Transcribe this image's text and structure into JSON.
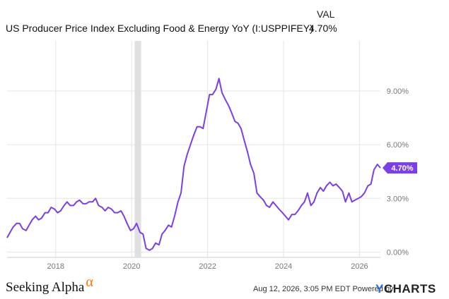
{
  "legend": {
    "header": "VAL",
    "series_label": "US Producer Price Index Excluding Food & Energy YoY (I:USPPIFEY)",
    "series_value": "4.70%"
  },
  "footer": {
    "timestamp": "Aug 12, 2026, 3:05 PM EDT Powered by",
    "brand_y": "Y",
    "brand_rest": "CHARTS",
    "logo_text": "Seeking Alpha",
    "logo_mark": "α"
  },
  "colors": {
    "line": "#7b3fe4",
    "grid": "#e4e4e4",
    "recession": "#e0e0e0",
    "tick_text": "#777777",
    "badge": "#7b3fe4"
  },
  "chart_data": {
    "type": "line",
    "title": "US Producer Price Index Excluding Food & Energy YoY (I:USPPIFEY)",
    "xlabel": "",
    "ylabel": "",
    "y_ticks": [
      0,
      3,
      6,
      9
    ],
    "y_tick_labels": [
      "0.00%",
      "3.00%",
      "6.00%",
      "9.00%"
    ],
    "x_ticks": [
      2018,
      2020,
      2022,
      2024,
      2026
    ],
    "x_tick_labels": [
      "2018",
      "2020",
      "2022",
      "2024",
      "2026"
    ],
    "xlim": [
      2016.72,
      2026.55
    ],
    "ylim": [
      -0.3,
      11.8
    ],
    "grid": true,
    "end_label": "4.70%",
    "recession": [
      2020.08,
      2020.25
    ],
    "series": [
      {
        "x": [
          2016.72,
          2016.8,
          2016.88,
          2016.97,
          2017.05,
          2017.13,
          2017.22,
          2017.3,
          2017.38,
          2017.47,
          2017.55,
          2017.63,
          2017.72,
          2017.8,
          2017.88,
          2017.97,
          2018.05,
          2018.13,
          2018.22,
          2018.3,
          2018.38,
          2018.47,
          2018.55,
          2018.63,
          2018.72,
          2018.8,
          2018.88,
          2018.97,
          2019.05,
          2019.13,
          2019.22,
          2019.3,
          2019.38,
          2019.47,
          2019.55,
          2019.63,
          2019.72,
          2019.8,
          2019.88,
          2019.97,
          2020.05,
          2020.13,
          2020.22,
          2020.3,
          2020.38,
          2020.47,
          2020.55,
          2020.63,
          2020.72,
          2020.8,
          2020.88,
          2020.97,
          2021.05,
          2021.13,
          2021.22,
          2021.3,
          2021.38,
          2021.47,
          2021.55,
          2021.63,
          2021.72,
          2021.8,
          2021.88,
          2021.97,
          2022.05,
          2022.13,
          2022.22,
          2022.3,
          2022.38,
          2022.47,
          2022.55,
          2022.63,
          2022.72,
          2022.8,
          2022.88,
          2022.97,
          2023.05,
          2023.13,
          2023.22,
          2023.3,
          2023.38,
          2023.47,
          2023.55,
          2023.63,
          2023.72,
          2023.8,
          2023.88,
          2023.97,
          2024.05,
          2024.13,
          2024.22,
          2024.3,
          2024.38,
          2024.47,
          2024.55,
          2024.63,
          2024.72,
          2024.8,
          2024.88,
          2024.97,
          2025.05,
          2025.13,
          2025.22,
          2025.3,
          2025.38,
          2025.47,
          2025.55,
          2025.63,
          2025.72,
          2025.8,
          2025.88,
          2025.97,
          2026.05,
          2026.13,
          2026.22,
          2026.3,
          2026.38,
          2026.47,
          2026.55
        ],
        "y": [
          0.8,
          1.1,
          1.4,
          1.6,
          1.6,
          1.3,
          1.2,
          1.5,
          1.8,
          2.0,
          1.8,
          1.9,
          2.2,
          2.2,
          2.5,
          2.4,
          2.2,
          2.3,
          2.6,
          2.8,
          2.6,
          2.6,
          2.8,
          2.9,
          2.7,
          2.7,
          2.8,
          2.8,
          3.0,
          2.6,
          2.5,
          2.3,
          2.5,
          2.4,
          2.2,
          2.2,
          2.3,
          2.0,
          1.6,
          1.2,
          1.3,
          1.6,
          1.1,
          1.0,
          0.2,
          0.1,
          0.2,
          0.5,
          0.4,
          1.0,
          1.2,
          1.5,
          1.4,
          2.0,
          2.8,
          3.3,
          4.8,
          5.5,
          6.0,
          6.5,
          7.0,
          7.0,
          6.9,
          7.9,
          8.8,
          8.8,
          9.1,
          9.7,
          8.9,
          8.5,
          8.2,
          7.8,
          7.3,
          7.2,
          6.9,
          6.2,
          5.6,
          4.9,
          4.4,
          3.3,
          3.1,
          2.9,
          2.6,
          2.5,
          2.8,
          2.6,
          2.4,
          2.2,
          2.0,
          1.8,
          2.1,
          2.1,
          2.3,
          2.6,
          2.8,
          3.3,
          2.6,
          2.8,
          3.3,
          3.6,
          3.4,
          3.7,
          3.9,
          3.7,
          3.8,
          3.6,
          3.4,
          2.8,
          3.3,
          2.8,
          2.9,
          3.0,
          3.1,
          3.3,
          3.7,
          3.8,
          4.6,
          4.9,
          4.7
        ]
      }
    ]
  }
}
